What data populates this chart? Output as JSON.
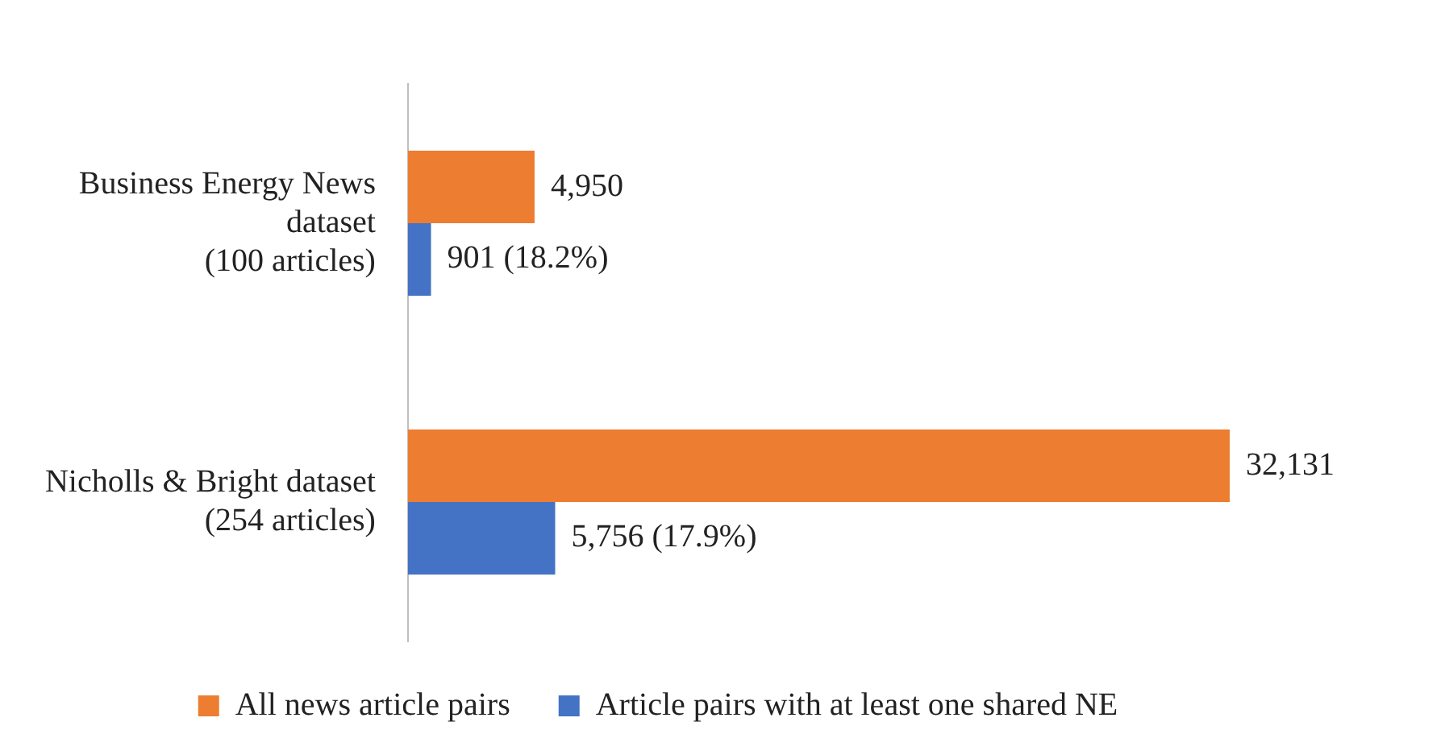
{
  "chart_data": {
    "type": "bar",
    "orientation": "horizontal",
    "categories": [
      "Business Energy News\ndataset\n(100 articles)",
      "Nicholls & Bright dataset\n(254 articles)"
    ],
    "series": [
      {
        "name": "All news article pairs",
        "color": "#ed7d31",
        "values": [
          4950,
          32131
        ],
        "value_labels": [
          "4,950",
          "32,131"
        ]
      },
      {
        "name": "Article pairs with at least one shared NE",
        "color": "#4472c4",
        "values": [
          901,
          5756
        ],
        "value_labels": [
          "901 (18.2%)",
          "5,756 (17.9%)"
        ]
      }
    ],
    "legend": "bottom",
    "grid": false
  }
}
